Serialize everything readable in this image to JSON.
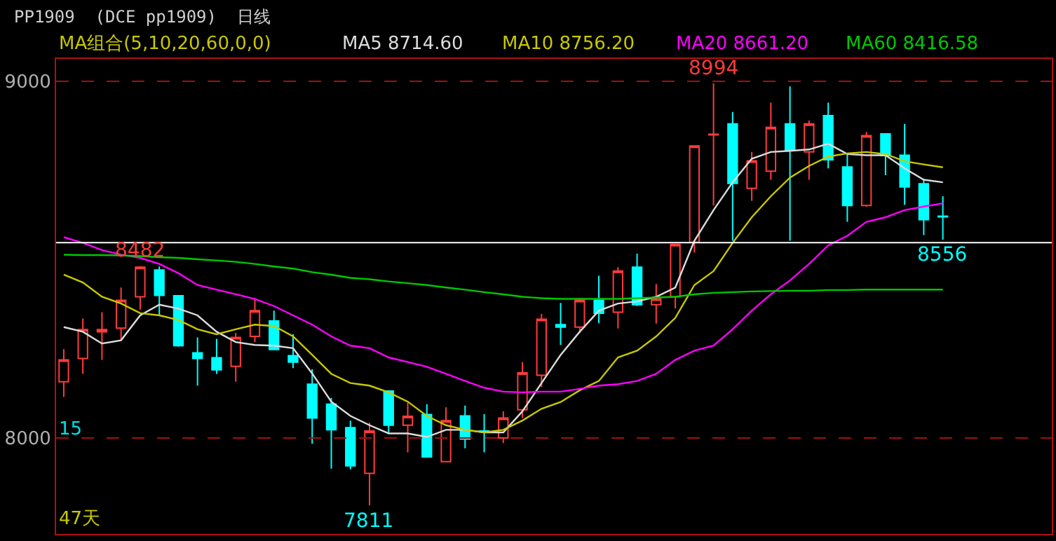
{
  "chart_data": {
    "type": "candlestick",
    "title": "PP1909  (DCE pp1909)  日线",
    "categories": [
      null,
      null,
      null,
      null,
      null,
      null,
      null,
      null,
      null,
      null,
      null,
      null,
      null,
      null,
      null,
      null,
      null,
      null,
      null,
      null,
      null,
      null,
      null,
      null,
      null,
      null,
      null,
      null,
      null,
      null,
      null,
      null,
      null,
      null,
      null,
      null,
      null,
      null,
      null,
      null,
      null,
      null,
      null,
      null,
      null,
      null,
      null
    ],
    "ohlc": [
      [
        8158,
        8249,
        8115,
        8219
      ],
      [
        8223,
        8335,
        8180,
        8304
      ],
      [
        8298,
        8353,
        8219,
        8304
      ],
      [
        8308,
        8422,
        8274,
        8386
      ],
      [
        8396,
        8482,
        8360,
        8479
      ],
      [
        8471,
        8481,
        8344,
        8400
      ],
      [
        8399,
        8399,
        8256,
        8259
      ],
      [
        8239,
        8282,
        8147,
        8223
      ],
      [
        8225,
        8278,
        8180,
        8191
      ],
      [
        8201,
        8295,
        8158,
        8282
      ],
      [
        8285,
        8392,
        8269,
        8357
      ],
      [
        8328,
        8357,
        8246,
        8248
      ],
      [
        8231,
        8291,
        8196,
        8213
      ],
      [
        8151,
        8193,
        7984,
        8056
      ],
      [
        8095,
        8112,
        7914,
        8023
      ],
      [
        8029,
        8049,
        7912,
        7922
      ],
      [
        7901,
        8043,
        7811,
        8020
      ],
      [
        8132,
        8132,
        8012,
        8036
      ],
      [
        8036,
        8099,
        7960,
        8061
      ],
      [
        8066,
        8095,
        7947,
        7947
      ],
      [
        7934,
        8086,
        7934,
        8049
      ],
      [
        8062,
        8091,
        7971,
        7997
      ],
      [
        8020,
        8067,
        7960,
        8018
      ],
      [
        8000,
        8075,
        7986,
        8056
      ],
      [
        8079,
        8213,
        8056,
        8183
      ],
      [
        8176,
        8348,
        8143,
        8333
      ],
      [
        8318,
        8379,
        8261,
        8311
      ],
      [
        8311,
        8392,
        8295,
        8386
      ],
      [
        8386,
        8455,
        8322,
        8350
      ],
      [
        8353,
        8479,
        8307,
        8468
      ],
      [
        8479,
        8517,
        8370,
        8374
      ],
      [
        8374,
        8432,
        8321,
        8390
      ],
      [
        8396,
        8543,
        8363,
        8543
      ],
      [
        8549,
        8819,
        8520,
        8819
      ],
      [
        8850,
        8994,
        8652,
        8852
      ],
      [
        8881,
        8914,
        8553,
        8714
      ],
      [
        8700,
        8802,
        8665,
        8777
      ],
      [
        8748,
        8940,
        8724,
        8871
      ],
      [
        8881,
        8986,
        8553,
        8806
      ],
      [
        8802,
        8890,
        8724,
        8881
      ],
      [
        8904,
        8940,
        8756,
        8780
      ],
      [
        8760,
        8796,
        8606,
        8652
      ],
      [
        8652,
        8858,
        8649,
        8848
      ],
      [
        8853,
        8853,
        8737,
        8792
      ],
      [
        8793,
        8881,
        8654,
        8704
      ],
      [
        8713,
        8727,
        8569,
        8612
      ],
      [
        8622,
        8678,
        8556,
        8620
      ]
    ],
    "colors": [
      "#ff3b3b",
      "#ff3b3b",
      "#ff3b3b",
      "#ff3b3b",
      "#ff3b3b",
      "#00ffff",
      "#00ffff",
      "#00ffff",
      "#00ffff",
      "#ff3b3b",
      "#ff3b3b",
      "#00ffff",
      "#00ffff",
      "#00ffff",
      "#00ffff",
      "#00ffff",
      "#ff3b3b",
      "#00ffff",
      "#ff3b3b",
      "#00ffff",
      "#ff3b3b",
      "#00ffff",
      "#00ffff",
      "#ff3b3b",
      "#ff3b3b",
      "#ff3b3b",
      "#00ffff",
      "#ff3b3b",
      "#00ffff",
      "#ff3b3b",
      "#00ffff",
      "#ff3b3b",
      "#ff3b3b",
      "#ff3b3b",
      "#ff3b3b",
      "#00ffff",
      "#ff3b3b",
      "#ff3b3b",
      "#00ffff",
      "#ff3b3b",
      "#00ffff",
      "#00ffff",
      "#ff3b3b",
      "#00ffff",
      "#00ffff",
      "#00ffff",
      "#00ffff"
    ],
    "series": [
      {
        "name": "MA5 8714.60",
        "type": "line",
        "color": "#dcdcdc",
        "values": [
          8311,
          8298,
          8265,
          8274,
          8344,
          8374,
          8363,
          8344,
          8298,
          8269,
          8261,
          8259,
          8252,
          8181,
          8102,
          8062,
          8036,
          8013,
          8013,
          8003,
          8023,
          8023,
          8016,
          8016,
          8075,
          8154,
          8233,
          8298,
          8357,
          8377,
          8383,
          8396,
          8422,
          8553,
          8639,
          8717,
          8783,
          8802,
          8805,
          8809,
          8825,
          8796,
          8793,
          8793,
          8756,
          8724,
          8717
        ]
      },
      {
        "name": "MA10 8756.20",
        "type": "line",
        "color": "#c8c800",
        "values": [
          8458,
          8436,
          8396,
          8377,
          8350,
          8344,
          8331,
          8305,
          8291,
          8305,
          8318,
          8314,
          8285,
          8233,
          8180,
          8154,
          8147,
          8128,
          8102,
          8062,
          8036,
          8023,
          8016,
          8023,
          8049,
          8082,
          8101,
          8134,
          8160,
          8226,
          8245,
          8285,
          8337,
          8429,
          8468,
          8547,
          8619,
          8678,
          8730,
          8763,
          8789,
          8798,
          8802,
          8796,
          8776,
          8767,
          8759
        ]
      },
      {
        "name": "MA20 8661.20",
        "type": "line",
        "color": "#ff00ff",
        "values": [
          8563,
          8547,
          8527,
          8514,
          8505,
          8488,
          8462,
          8429,
          8416,
          8403,
          8390,
          8370,
          8344,
          8318,
          8285,
          8259,
          8252,
          8226,
          8213,
          8200,
          8180,
          8160,
          8141,
          8130,
          8128,
          8130,
          8130,
          8138,
          8147,
          8151,
          8160,
          8180,
          8219,
          8245,
          8259,
          8305,
          8357,
          8403,
          8442,
          8488,
          8540,
          8567,
          8606,
          8619,
          8639,
          8649,
          8658
        ]
      },
      {
        "name": "MA60 8416.58",
        "type": "line",
        "color": "#00c800",
        "values": [
          8514,
          8513,
          8513,
          8512,
          8510,
          8507,
          8505,
          8501,
          8498,
          8494,
          8488,
          8481,
          8475,
          8465,
          8458,
          8449,
          8445,
          8439,
          8434,
          8429,
          8422,
          8416,
          8409,
          8403,
          8396,
          8392,
          8390,
          8390,
          8390,
          8390,
          8392,
          8394,
          8396,
          8403,
          8407,
          8409,
          8411,
          8412,
          8413,
          8413,
          8415,
          8415,
          8416,
          8416,
          8416,
          8416,
          8416
        ]
      }
    ],
    "ylim": [
      7731,
      9063
    ],
    "yticks": [
      8000,
      9000
    ],
    "grid": "y",
    "tick_labels": "y",
    "ref_lines": [
      {
        "axis": "y",
        "value": 8548,
        "color": "#ffffff"
      }
    ],
    "annotations": [
      {
        "text": "8482",
        "y": 8482
      },
      {
        "text": "8994",
        "y": 8994
      },
      {
        "text": "7811",
        "y": 7811
      },
      {
        "text": "8556",
        "y": 8556
      },
      "MA组合(5,10,20,60,0,0)",
      "15",
      "47天"
    ]
  }
}
